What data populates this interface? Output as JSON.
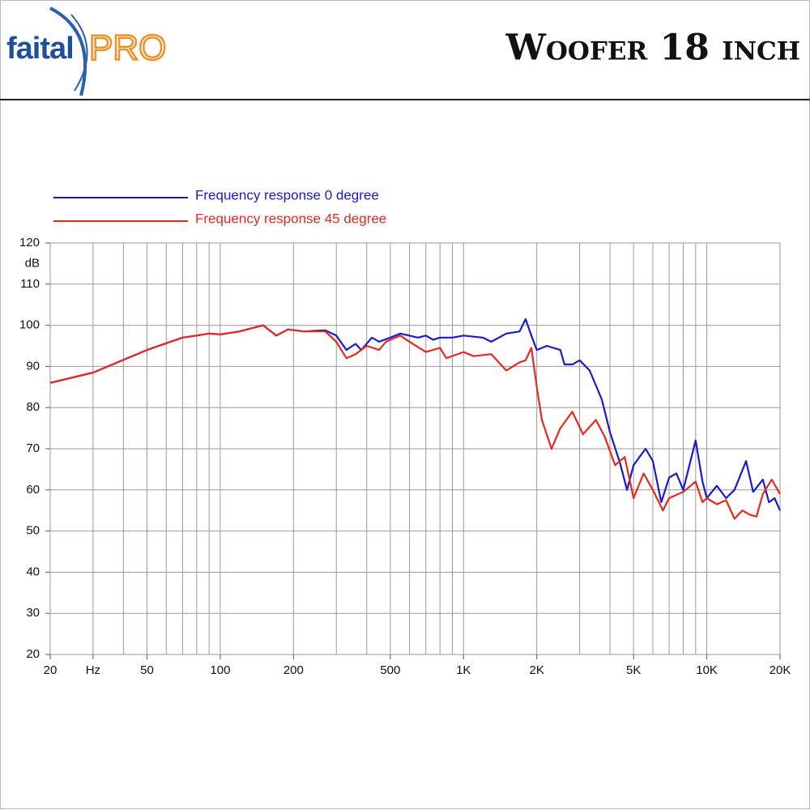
{
  "header": {
    "logo_left": "faital",
    "logo_right": "PRO"
  },
  "chart_data": {
    "type": "line",
    "title": "Woofer 18 inch",
    "ylabel": "dB",
    "log_x": true,
    "grid": true,
    "xlim": [
      20,
      20000
    ],
    "ylim": [
      20,
      120
    ],
    "yticks": [
      20,
      30,
      40,
      50,
      60,
      70,
      80,
      90,
      100,
      110,
      120
    ],
    "xticks": [
      20,
      {
        "value": 30,
        "label": "Hz"
      },
      50,
      100,
      200,
      500,
      {
        "value": 1000,
        "label": "1K"
      },
      {
        "value": 2000,
        "label": "2K"
      },
      {
        "value": 5000,
        "label": "5K"
      },
      {
        "value": 10000,
        "label": "10K"
      },
      {
        "value": 20000,
        "label": "20K"
      }
    ],
    "xminor": [
      40,
      60,
      70,
      80,
      90,
      300,
      400,
      600,
      700,
      800,
      900,
      3000,
      4000,
      6000,
      7000,
      8000,
      9000
    ],
    "series": [
      {
        "name": "Frequency response 0 degree",
        "color": "#1a1acc",
        "x": [
          20,
          30,
          50,
          70,
          80,
          90,
          100,
          120,
          150,
          170,
          190,
          220,
          270,
          300,
          330,
          360,
          380,
          420,
          450,
          500,
          550,
          650,
          700,
          750,
          800,
          900,
          1000,
          1200,
          1300,
          1500,
          1700,
          1800,
          1900,
          2000,
          2200,
          2500,
          2600,
          2800,
          3000,
          3300,
          3700,
          4000,
          4400,
          4700,
          5000,
          5600,
          6000,
          6500,
          7000,
          7500,
          8000,
          9000,
          9600,
          10000,
          11000,
          12000,
          13000,
          14500,
          15500,
          17000,
          18000,
          19000,
          20000
        ],
        "values": [
          86,
          88.5,
          94,
          97,
          97.5,
          98,
          97.8,
          98.5,
          100,
          97.5,
          99,
          98.5,
          98.8,
          97.5,
          94,
          95.5,
          94,
          97,
          96,
          97,
          98,
          97,
          97.5,
          96.5,
          97,
          97,
          97.5,
          97,
          96,
          98,
          98.5,
          101.5,
          97.5,
          94,
          95,
          94,
          90.5,
          90.5,
          91.5,
          89,
          82,
          74,
          66.5,
          60,
          66,
          70,
          67,
          57,
          63,
          64,
          60,
          72,
          62,
          58,
          61,
          58,
          60,
          67,
          59.5,
          62.5,
          57,
          58,
          55
        ]
      },
      {
        "name": "Frequency response 45 degree",
        "color": "#e8281e",
        "x": [
          20,
          30,
          50,
          70,
          80,
          90,
          100,
          120,
          150,
          170,
          190,
          220,
          270,
          300,
          330,
          360,
          400,
          450,
          480,
          550,
          600,
          700,
          800,
          850,
          1000,
          1100,
          1300,
          1500,
          1700,
          1800,
          1900,
          2000,
          2100,
          2300,
          2500,
          2800,
          3100,
          3500,
          3800,
          4200,
          4600,
          5000,
          5500,
          6000,
          6600,
          7000,
          8000,
          9000,
          9600,
          10000,
          11000,
          12000,
          13000,
          14000,
          15000,
          16000,
          17000,
          18500,
          20000
        ],
        "values": [
          86,
          88.5,
          94,
          97,
          97.5,
          98,
          97.8,
          98.5,
          100,
          97.5,
          99,
          98.5,
          98.5,
          96,
          92,
          93,
          95,
          94,
          96,
          97.5,
          96,
          93.5,
          94.5,
          92,
          93.5,
          92.5,
          93,
          89,
          91,
          91.5,
          94.5,
          85,
          77,
          70,
          75,
          79,
          73.5,
          77,
          73,
          66,
          68,
          58,
          64,
          60,
          55,
          58,
          59.5,
          62,
          57,
          58,
          56.5,
          57.5,
          53,
          55,
          54,
          53.5,
          59,
          62.5,
          59
        ]
      }
    ]
  }
}
